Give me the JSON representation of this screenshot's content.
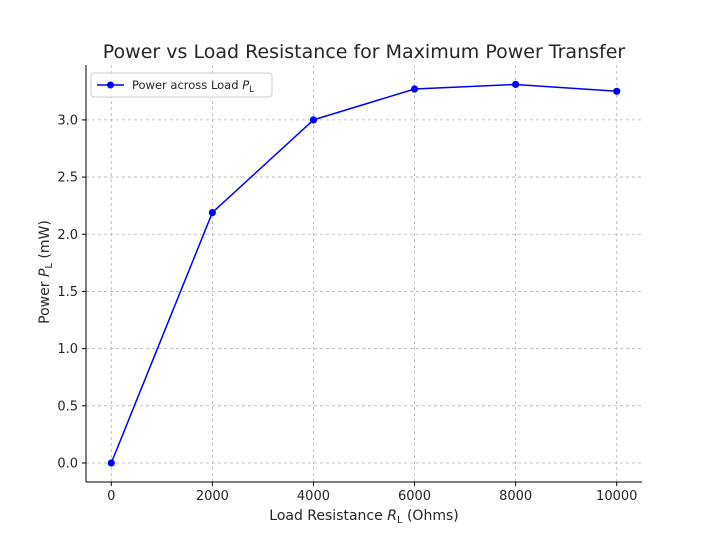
{
  "chart_data": {
    "type": "line",
    "title": "Power vs Load Resistance for Maximum Power Transfer",
    "xlabel": "Load Resistance R_L (Ohms)",
    "ylabel": "Power P_L (mW)",
    "x": [
      0,
      2000,
      4000,
      6000,
      8000,
      10000
    ],
    "series": [
      {
        "name": "Power across Load P_L",
        "values": [
          0.0,
          2.19,
          3.0,
          3.27,
          3.31,
          3.25
        ],
        "color": "#0000ff",
        "marker": "circle"
      }
    ],
    "xlim": [
      -500,
      10500
    ],
    "ylim": [
      -0.166,
      3.48
    ],
    "xticks": [
      0,
      2000,
      4000,
      6000,
      8000,
      10000
    ],
    "yticks": [
      0.0,
      0.5,
      1.0,
      1.5,
      2.0,
      2.5,
      3.0
    ],
    "xtick_labels": [
      "0",
      "2000",
      "4000",
      "6000",
      "8000",
      "10000"
    ],
    "ytick_labels": [
      "0.0",
      "0.5",
      "1.0",
      "1.5",
      "2.0",
      "2.5",
      "3.0"
    ],
    "grid": true,
    "legend_position": "top-left"
  },
  "legend": {
    "label_prefix": "Power across Load ",
    "label_var": "P",
    "label_sub": "L"
  },
  "axes_text": {
    "xlabel_prefix": "Load Resistance ",
    "xlabel_var": "R",
    "xlabel_sub": "L",
    "xlabel_suffix": " (Ohms)",
    "ylabel_prefix": "Power ",
    "ylabel_var": "P",
    "ylabel_sub": "L",
    "ylabel_suffix": " (mW)"
  }
}
